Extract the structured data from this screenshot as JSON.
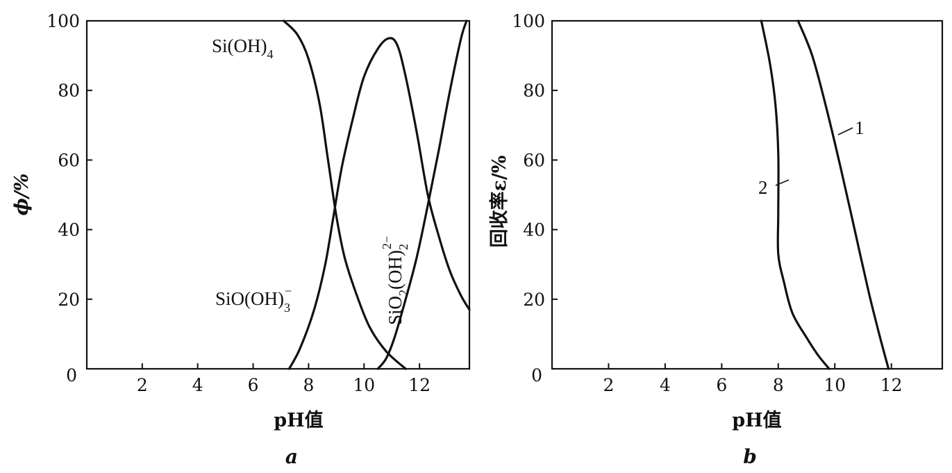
{
  "chart_data": [
    {
      "type": "line",
      "panel_label": "a",
      "xlabel": "pH值",
      "ylabel": "ϕ/%",
      "xlim": [
        0,
        13.8
      ],
      "ylim": [
        0,
        100
      ],
      "xticks": [
        2,
        4,
        6,
        8,
        10,
        12
      ],
      "yticks": [
        20,
        40,
        60,
        80,
        100
      ],
      "origin_label": "0",
      "grid": false,
      "series": [
        {
          "name": "Si(OH)4",
          "label_main": "Si(OH)",
          "label_sub": "4",
          "points": [
            [
              7.1,
              100
            ],
            [
              7.6,
              96
            ],
            [
              8.0,
              89
            ],
            [
              8.4,
              76
            ],
            [
              8.7,
              60
            ],
            [
              9.0,
              44
            ],
            [
              9.3,
              32
            ],
            [
              9.7,
              22
            ],
            [
              10.2,
              12
            ],
            [
              10.8,
              5
            ],
            [
              11.5,
              0
            ]
          ]
        },
        {
          "name": "SiO(OH)3-",
          "label_main": "SiO(OH)",
          "label_sub": "3",
          "label_sup": "−",
          "points": [
            [
              7.3,
              0
            ],
            [
              7.7,
              6
            ],
            [
              8.2,
              17
            ],
            [
              8.6,
              30
            ],
            [
              8.9,
              44
            ],
            [
              9.2,
              58
            ],
            [
              9.6,
              72
            ],
            [
              10.0,
              84
            ],
            [
              10.5,
              92
            ],
            [
              10.9,
              95
            ],
            [
              11.2,
              93
            ],
            [
              11.5,
              84
            ],
            [
              11.9,
              68
            ],
            [
              12.3,
              50
            ],
            [
              12.7,
              38
            ],
            [
              13.1,
              28
            ],
            [
              13.5,
              21
            ],
            [
              13.8,
              17
            ]
          ]
        },
        {
          "name": "SiO2(OH)2 2-",
          "label_main": "SiO",
          "label_sub1": "2",
          "label_mid": "(OH)",
          "label_sub2": "2",
          "label_sup": "2−",
          "points": [
            [
              10.5,
              0
            ],
            [
              10.8,
              3
            ],
            [
              11.1,
              9
            ],
            [
              11.5,
              20
            ],
            [
              11.9,
              32
            ],
            [
              12.3,
              47
            ],
            [
              12.7,
              63
            ],
            [
              13.1,
              80
            ],
            [
              13.5,
              95
            ],
            [
              13.7,
              100
            ]
          ]
        }
      ]
    },
    {
      "type": "line",
      "panel_label": "b",
      "xlabel": "pH值",
      "ylabel": "回收率ε/%",
      "xlim": [
        0,
        13.8
      ],
      "ylim": [
        0,
        100
      ],
      "xticks": [
        2,
        4,
        6,
        8,
        10,
        12
      ],
      "yticks": [
        20,
        40,
        60,
        80,
        100
      ],
      "origin_label": "0",
      "grid": false,
      "series": [
        {
          "name": "1",
          "points": [
            [
              8.7,
              100
            ],
            [
              9.2,
              90
            ],
            [
              9.7,
              75
            ],
            [
              10.2,
              58
            ],
            [
              10.7,
              40
            ],
            [
              11.2,
              22
            ],
            [
              11.6,
              9
            ],
            [
              11.9,
              0
            ]
          ]
        },
        {
          "name": "2",
          "points": [
            [
              7.4,
              100
            ],
            [
              7.7,
              88
            ],
            [
              7.9,
              76
            ],
            [
              8.0,
              62
            ],
            [
              8.0,
              45
            ],
            [
              8.0,
              33
            ],
            [
              8.2,
              25
            ],
            [
              8.5,
              16
            ],
            [
              9.0,
              9
            ],
            [
              9.4,
              4
            ],
            [
              9.8,
              0
            ]
          ]
        }
      ]
    }
  ]
}
